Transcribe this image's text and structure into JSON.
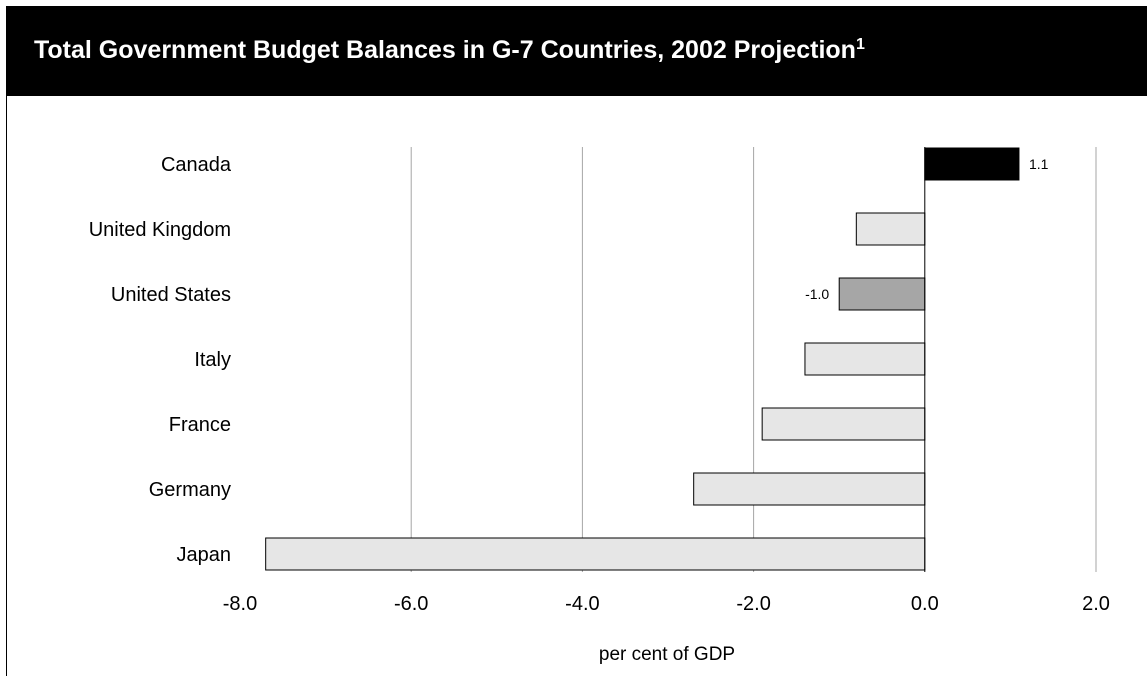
{
  "header": {
    "title": "Total Government Budget Balances in G-7 Countries, 2002 Projection",
    "title_sup": "1"
  },
  "colors": {
    "header_bg": "#000000",
    "canada_bar": "#000000",
    "us_bar": "#a6a6a6",
    "other_bar": "#e6e6e6",
    "grid": "#a6a6a6"
  },
  "chart_data": {
    "type": "bar",
    "orientation": "horizontal",
    "title": "Total Government Budget Balances in G-7 Countries, 2002 Projection",
    "xlabel": "per cent of GDP",
    "ylabel": "",
    "xlim": [
      -8.0,
      2.0
    ],
    "xticks": [
      -8.0,
      -6.0,
      -4.0,
      -2.0,
      0.0,
      2.0
    ],
    "xtick_labels": [
      "-8.0",
      "-6.0",
      "-4.0",
      "-2.0",
      "0.0",
      "2.0"
    ],
    "grid": "vertical",
    "categories": [
      "Canada",
      "United Kingdom",
      "United States",
      "Italy",
      "France",
      "Germany",
      "Japan"
    ],
    "values": [
      1.1,
      -0.8,
      -1.0,
      -1.4,
      -1.9,
      -2.7,
      -7.7
    ],
    "data_labels": {
      "Canada": "1.1",
      "United States": "-1.0"
    },
    "bar_colors": [
      "#000000",
      "#e6e6e6",
      "#a6a6a6",
      "#e6e6e6",
      "#e6e6e6",
      "#e6e6e6",
      "#e6e6e6"
    ]
  }
}
